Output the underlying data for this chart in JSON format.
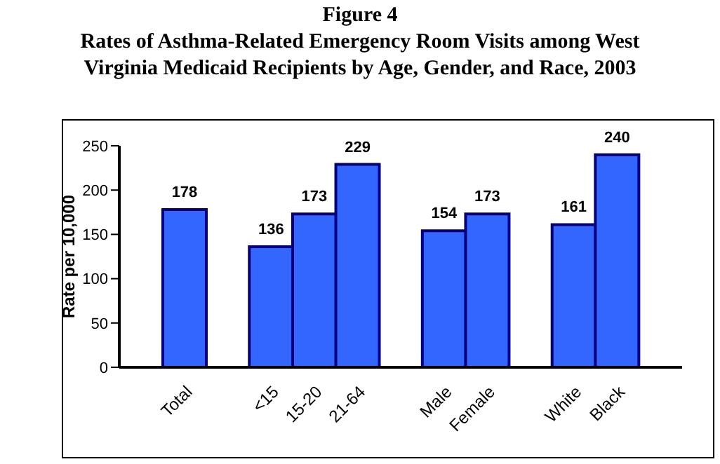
{
  "chart_data": {
    "type": "bar",
    "title": "Figure 4",
    "subtitle": "Rates of Asthma-Related Emergency Room Visits among West Virginia Medicaid Recipients by Age, Gender, and Race, 2003",
    "ylabel": "Rate per 10,000",
    "categories": [
      "Total",
      null,
      "<15",
      "15-20",
      "21-64",
      null,
      "Male",
      "Female",
      null,
      "White",
      "Black"
    ],
    "values": [
      178,
      null,
      136,
      173,
      229,
      null,
      154,
      173,
      null,
      161,
      240
    ],
    "color": "#3366ff",
    "ylim": [
      0,
      250
    ],
    "yticks": [
      0,
      50,
      100,
      150,
      200,
      250
    ],
    "grid": false,
    "data_labels": true
  }
}
